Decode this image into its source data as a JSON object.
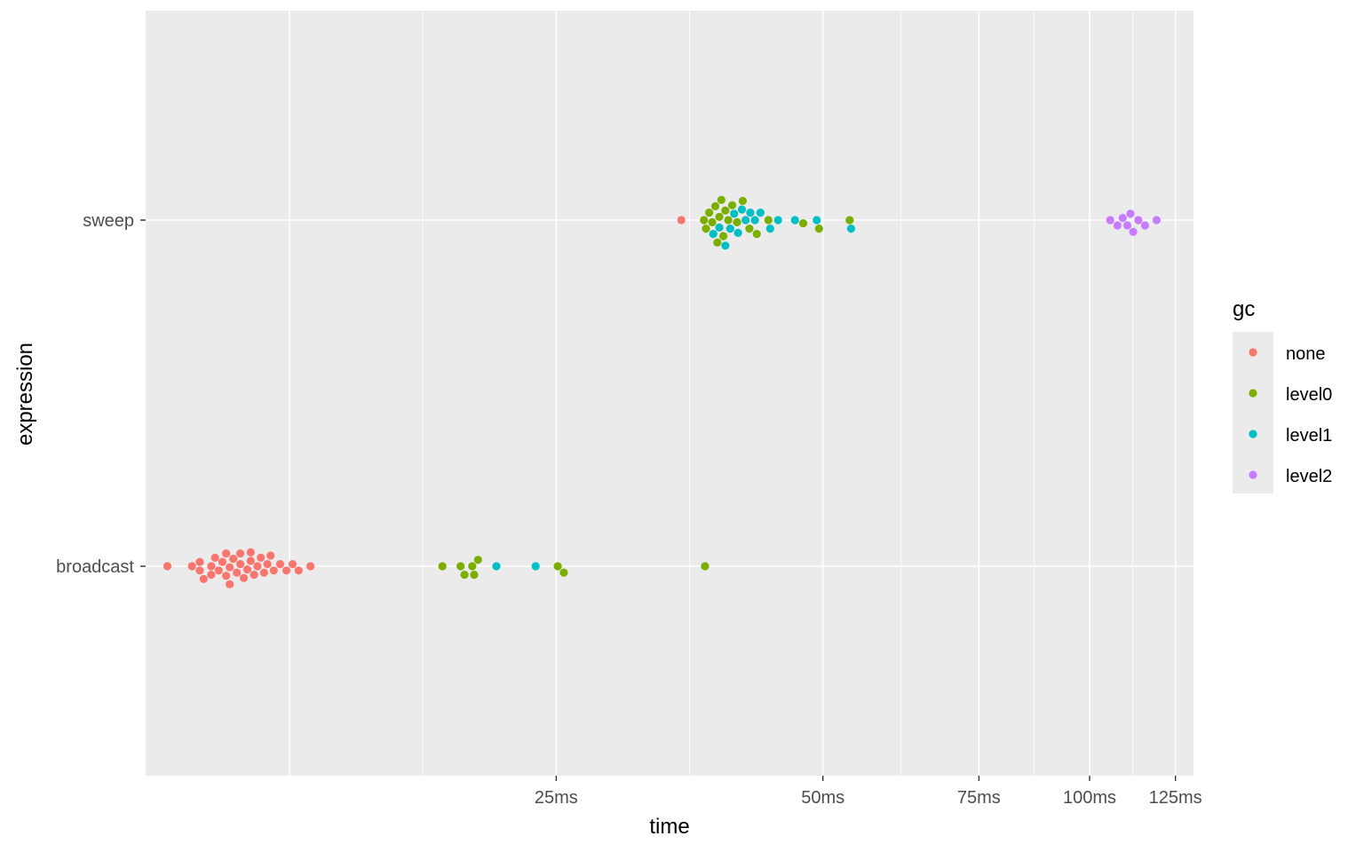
{
  "chart_data": {
    "type": "scatter",
    "xlabel": "time",
    "ylabel": "expression",
    "x_scale": "log",
    "x_unit": "ms",
    "x_ticks": [
      {
        "value": 25,
        "label": "25ms"
      },
      {
        "value": 50,
        "label": "50ms"
      },
      {
        "value": 75,
        "label": "75ms"
      },
      {
        "value": 100,
        "label": "100ms"
      },
      {
        "value": 125,
        "label": "125ms"
      }
    ],
    "xlim": [
      8.6,
      131
    ],
    "categories": [
      "broadcast",
      "sweep"
    ],
    "legend": {
      "title": "gc",
      "position": "right",
      "entries": [
        {
          "name": "none",
          "color": "#F8766D"
        },
        {
          "name": "level0",
          "color": "#7CAE00"
        },
        {
          "name": "level1",
          "color": "#00BFC4"
        },
        {
          "name": "level2",
          "color": "#C77CFF"
        }
      ]
    },
    "series": [
      {
        "name": "none",
        "color": "#F8766D",
        "points": [
          {
            "category": "broadcast",
            "x": 9.1
          },
          {
            "category": "broadcast",
            "x": 9.7
          },
          {
            "category": "broadcast",
            "x": 9.9
          },
          {
            "category": "broadcast",
            "x": 9.9
          },
          {
            "category": "broadcast",
            "x": 10.0
          },
          {
            "category": "broadcast",
            "x": 10.2
          },
          {
            "category": "broadcast",
            "x": 10.2
          },
          {
            "category": "broadcast",
            "x": 10.3
          },
          {
            "category": "broadcast",
            "x": 10.4
          },
          {
            "category": "broadcast",
            "x": 10.5
          },
          {
            "category": "broadcast",
            "x": 10.6
          },
          {
            "category": "broadcast",
            "x": 10.6
          },
          {
            "category": "broadcast",
            "x": 10.7
          },
          {
            "category": "broadcast",
            "x": 10.7
          },
          {
            "category": "broadcast",
            "x": 10.8
          },
          {
            "category": "broadcast",
            "x": 10.9
          },
          {
            "category": "broadcast",
            "x": 11.0
          },
          {
            "category": "broadcast",
            "x": 11.0
          },
          {
            "category": "broadcast",
            "x": 11.1
          },
          {
            "category": "broadcast",
            "x": 11.2
          },
          {
            "category": "broadcast",
            "x": 11.3
          },
          {
            "category": "broadcast",
            "x": 11.3
          },
          {
            "category": "broadcast",
            "x": 11.4
          },
          {
            "category": "broadcast",
            "x": 11.5
          },
          {
            "category": "broadcast",
            "x": 11.6
          },
          {
            "category": "broadcast",
            "x": 11.7
          },
          {
            "category": "broadcast",
            "x": 11.8
          },
          {
            "category": "broadcast",
            "x": 11.9
          },
          {
            "category": "broadcast",
            "x": 12.0
          },
          {
            "category": "broadcast",
            "x": 12.2
          },
          {
            "category": "broadcast",
            "x": 12.4
          },
          {
            "category": "broadcast",
            "x": 12.6
          },
          {
            "category": "broadcast",
            "x": 12.8
          },
          {
            "category": "broadcast",
            "x": 13.2
          },
          {
            "category": "sweep",
            "x": 34.6
          }
        ]
      },
      {
        "name": "level0",
        "color": "#7CAE00",
        "points": [
          {
            "category": "broadcast",
            "x": 18.6
          },
          {
            "category": "broadcast",
            "x": 19.5
          },
          {
            "category": "broadcast",
            "x": 19.7
          },
          {
            "category": "broadcast",
            "x": 20.1
          },
          {
            "category": "broadcast",
            "x": 20.2
          },
          {
            "category": "broadcast",
            "x": 20.4
          },
          {
            "category": "broadcast",
            "x": 25.1
          },
          {
            "category": "broadcast",
            "x": 25.5
          },
          {
            "category": "broadcast",
            "x": 36.8
          },
          {
            "category": "sweep",
            "x": 36.7
          },
          {
            "category": "sweep",
            "x": 36.9
          },
          {
            "category": "sweep",
            "x": 37.2
          },
          {
            "category": "sweep",
            "x": 37.5
          },
          {
            "category": "sweep",
            "x": 37.8
          },
          {
            "category": "sweep",
            "x": 38.0
          },
          {
            "category": "sweep",
            "x": 38.2
          },
          {
            "category": "sweep",
            "x": 38.4
          },
          {
            "category": "sweep",
            "x": 38.6
          },
          {
            "category": "sweep",
            "x": 38.8
          },
          {
            "category": "sweep",
            "x": 39.1
          },
          {
            "category": "sweep",
            "x": 39.5
          },
          {
            "category": "sweep",
            "x": 40.0
          },
          {
            "category": "sweep",
            "x": 40.6
          },
          {
            "category": "sweep",
            "x": 41.3
          },
          {
            "category": "sweep",
            "x": 42.1
          },
          {
            "category": "sweep",
            "x": 43.4
          },
          {
            "category": "sweep",
            "x": 47.5
          },
          {
            "category": "sweep",
            "x": 49.5
          },
          {
            "category": "sweep",
            "x": 53.6
          }
        ]
      },
      {
        "name": "level1",
        "color": "#00BFC4",
        "points": [
          {
            "category": "broadcast",
            "x": 21.4
          },
          {
            "category": "broadcast",
            "x": 23.7
          },
          {
            "category": "sweep",
            "x": 37.6
          },
          {
            "category": "sweep",
            "x": 38.2
          },
          {
            "category": "sweep",
            "x": 38.8
          },
          {
            "category": "sweep",
            "x": 39.3
          },
          {
            "category": "sweep",
            "x": 39.7
          },
          {
            "category": "sweep",
            "x": 40.1
          },
          {
            "category": "sweep",
            "x": 40.5
          },
          {
            "category": "sweep",
            "x": 40.9
          },
          {
            "category": "sweep",
            "x": 41.4
          },
          {
            "category": "sweep",
            "x": 41.9
          },
          {
            "category": "sweep",
            "x": 42.5
          },
          {
            "category": "sweep",
            "x": 43.6
          },
          {
            "category": "sweep",
            "x": 44.5
          },
          {
            "category": "sweep",
            "x": 46.5
          },
          {
            "category": "sweep",
            "x": 49.2
          },
          {
            "category": "sweep",
            "x": 53.8
          }
        ]
      },
      {
        "name": "level2",
        "color": "#C77CFF",
        "points": [
          {
            "category": "sweep",
            "x": 105.5
          },
          {
            "category": "sweep",
            "x": 107.5
          },
          {
            "category": "sweep",
            "x": 109.0
          },
          {
            "category": "sweep",
            "x": 110.3
          },
          {
            "category": "sweep",
            "x": 111.2
          },
          {
            "category": "sweep",
            "x": 112.0
          },
          {
            "category": "sweep",
            "x": 113.5
          },
          {
            "category": "sweep",
            "x": 115.5
          },
          {
            "category": "sweep",
            "x": 119.0
          }
        ]
      }
    ]
  }
}
